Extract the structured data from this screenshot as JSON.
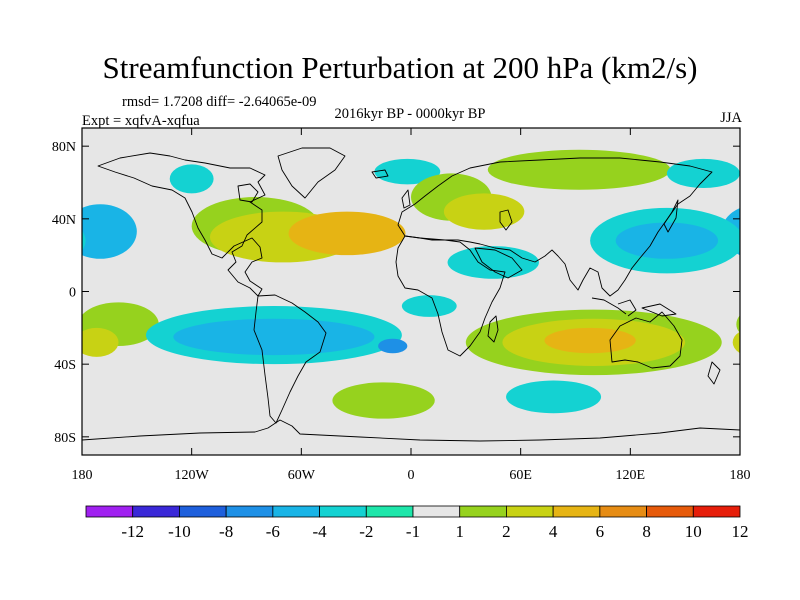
{
  "chart_data": {
    "type": "heatmap",
    "title": "Streamfunction Perturbation at 200 hPa (km2/s)",
    "stats_line": "rmsd= 1.7208 diff= -2.64065e-09",
    "experiment": "Expt = xqfvA-xqfua",
    "period": "2016kyr BP - 0000kyr BP",
    "season": "JJA",
    "xlabel": "",
    "ylabel": "",
    "xlim": [
      -180,
      180
    ],
    "ylim": [
      -90,
      90
    ],
    "x_tick_values": [
      -180,
      -120,
      -60,
      0,
      60,
      120,
      180
    ],
    "x_tick_labels": [
      "180",
      "120W",
      "60W",
      "0",
      "60E",
      "120E",
      "180"
    ],
    "y_tick_values": [
      80,
      40,
      0,
      -40,
      -80
    ],
    "y_tick_labels": [
      "80N",
      "40N",
      "0",
      "40S",
      "80S"
    ],
    "colorbar": {
      "levels": [
        -12,
        -10,
        -8,
        -6,
        -4,
        -2,
        -1,
        1,
        2,
        4,
        6,
        8,
        10,
        12
      ],
      "labels": [
        "-12",
        "-10",
        "-8",
        "-6",
        "-4",
        "-2",
        "-1",
        "1",
        "2",
        "4",
        "6",
        "8",
        "10",
        "12"
      ],
      "colors": [
        "#a020f0",
        "#3a28d8",
        "#1e5fdc",
        "#1e90e6",
        "#19b4e6",
        "#14d2d2",
        "#1ee6aa",
        "#e6e6e6",
        "#96d21e",
        "#c8d214",
        "#e6b414",
        "#e68c14",
        "#e65a0a",
        "#e61e0a"
      ]
    },
    "anomaly_regions": [
      {
        "lon": -170,
        "lat": 33,
        "rlon": 20,
        "rlat": 15,
        "value": -4
      },
      {
        "lon": -120,
        "lat": 62,
        "rlon": 12,
        "rlat": 8,
        "value": -2
      },
      {
        "lon": -160,
        "lat": -18,
        "rlon": 22,
        "rlat": 12,
        "value": 2
      },
      {
        "lon": -172,
        "lat": -28,
        "rlon": 12,
        "rlat": 8,
        "value": 4
      },
      {
        "lon": -85,
        "lat": 36,
        "rlon": 35,
        "rlat": 16,
        "value": 2
      },
      {
        "lon": -70,
        "lat": 30,
        "rlon": 40,
        "rlat": 14,
        "value": 4
      },
      {
        "lon": -35,
        "lat": 32,
        "rlon": 32,
        "rlat": 12,
        "value": 6
      },
      {
        "lon": -2,
        "lat": 66,
        "rlon": 18,
        "rlat": 7,
        "value": -2
      },
      {
        "lon": 22,
        "lat": 52,
        "rlon": 22,
        "rlat": 13,
        "value": 2
      },
      {
        "lon": 40,
        "lat": 44,
        "rlon": 22,
        "rlat": 10,
        "value": 4
      },
      {
        "lon": 92,
        "lat": 67,
        "rlon": 50,
        "rlat": 11,
        "value": 2
      },
      {
        "lon": 45,
        "lat": 16,
        "rlon": 25,
        "rlat": 9,
        "value": -2
      },
      {
        "lon": 140,
        "lat": 28,
        "rlon": 42,
        "rlat": 18,
        "value": -2
      },
      {
        "lon": 140,
        "lat": 28,
        "rlon": 28,
        "rlat": 10,
        "value": -4
      },
      {
        "lon": 160,
        "lat": 65,
        "rlon": 20,
        "rlat": 8,
        "value": -2
      },
      {
        "lon": -75,
        "lat": -24,
        "rlon": 70,
        "rlat": 16,
        "value": -2
      },
      {
        "lon": -75,
        "lat": -25,
        "rlon": 55,
        "rlat": 10,
        "value": -4
      },
      {
        "lon": -10,
        "lat": -30,
        "rlon": 8,
        "rlat": 4,
        "value": -6
      },
      {
        "lon": 10,
        "lat": -8,
        "rlon": 15,
        "rlat": 6,
        "value": -2
      },
      {
        "lon": -15,
        "lat": -60,
        "rlon": 28,
        "rlat": 10,
        "value": 2
      },
      {
        "lon": 100,
        "lat": -28,
        "rlon": 70,
        "rlat": 18,
        "value": 2
      },
      {
        "lon": 100,
        "lat": -28,
        "rlon": 50,
        "rlat": 13,
        "value": 4
      },
      {
        "lon": 98,
        "lat": -27,
        "rlon": 25,
        "rlat": 7,
        "value": 6
      },
      {
        "lon": 78,
        "lat": -58,
        "rlon": 26,
        "rlat": 9,
        "value": -2
      }
    ]
  }
}
